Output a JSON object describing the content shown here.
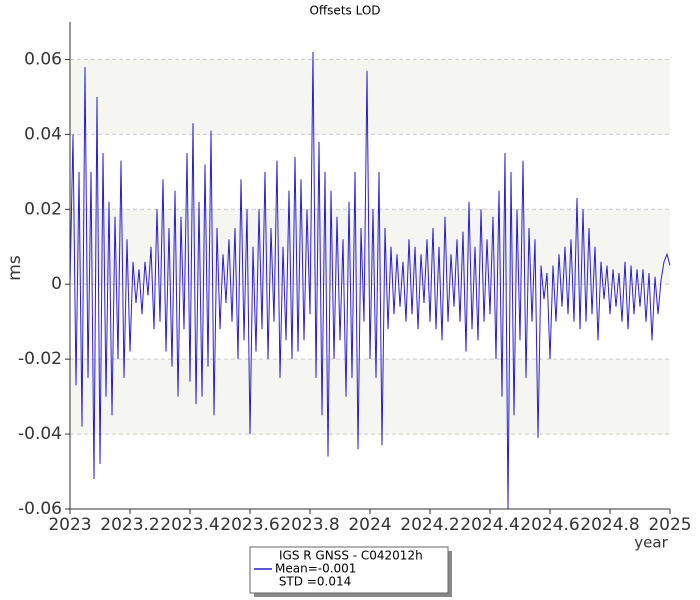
{
  "chart_data": {
    "type": "line",
    "title": "Offsets LOD",
    "xlabel": "year",
    "ylabel": "ms",
    "xlim": [
      2023,
      2025
    ],
    "xticks": [
      2023,
      2023.2,
      2023.4,
      2023.6,
      2023.8,
      2024,
      2024.2,
      2024.4,
      2024.6,
      2024.8,
      2025
    ],
    "ylim": [
      -0.06,
      0.07
    ],
    "yticks": [
      -0.06,
      -0.04,
      -0.02,
      0,
      0.02,
      0.04,
      0.06
    ],
    "grid": true,
    "annotations": [
      "Mean=-0.001",
      " STD =0.014"
    ],
    "x": [
      2023,
      2023.01,
      2023.02,
      2023.03,
      2023.04,
      2023.05,
      2023.06,
      2023.07,
      2023.08,
      2023.09,
      2023.1,
      2023.11,
      2023.12,
      2023.13,
      2023.14,
      2023.15,
      2023.16,
      2023.17,
      2023.18,
      2023.19,
      2023.2,
      2023.21,
      2023.22,
      2023.23,
      2023.24,
      2023.25,
      2023.26,
      2023.27,
      2023.28,
      2023.29,
      2023.3,
      2023.31,
      2023.32,
      2023.33,
      2023.34,
      2023.35,
      2023.36,
      2023.37,
      2023.38,
      2023.39,
      2023.4,
      2023.41,
      2023.42,
      2023.43,
      2023.44,
      2023.45,
      2023.46,
      2023.47,
      2023.48,
      2023.49,
      2023.5,
      2023.51,
      2023.52,
      2023.53,
      2023.54,
      2023.55,
      2023.56,
      2023.57,
      2023.58,
      2023.59,
      2023.6,
      2023.61,
      2023.62,
      2023.63,
      2023.64,
      2023.65,
      2023.66,
      2023.67,
      2023.68,
      2023.69,
      2023.7,
      2023.71,
      2023.72,
      2023.73,
      2023.74,
      2023.75,
      2023.76,
      2023.77,
      2023.78,
      2023.79,
      2023.8,
      2023.81,
      2023.82,
      2023.83,
      2023.84,
      2023.85,
      2023.86,
      2023.87,
      2023.88,
      2023.89,
      2023.9,
      2023.91,
      2023.92,
      2023.93,
      2023.94,
      2023.95,
      2023.96,
      2023.97,
      2023.98,
      2023.99,
      2024,
      2024.01,
      2024.02,
      2024.03,
      2024.04,
      2024.05,
      2024.06,
      2024.07,
      2024.08,
      2024.09,
      2024.1,
      2024.11,
      2024.12,
      2024.13,
      2024.14,
      2024.15,
      2024.16,
      2024.17,
      2024.18,
      2024.19,
      2024.2,
      2024.21,
      2024.22,
      2024.23,
      2024.24,
      2024.25,
      2024.26,
      2024.27,
      2024.28,
      2024.29,
      2024.3,
      2024.31,
      2024.32,
      2024.33,
      2024.34,
      2024.35,
      2024.36,
      2024.37,
      2024.38,
      2024.39,
      2024.4,
      2024.41,
      2024.42,
      2024.43,
      2024.44,
      2024.45,
      2024.46,
      2024.47,
      2024.48,
      2024.49,
      2024.5,
      2024.51,
      2024.52,
      2024.53,
      2024.54,
      2024.55,
      2024.56,
      2024.57,
      2024.58,
      2024.59,
      2024.6,
      2024.61,
      2024.62,
      2024.63,
      2024.64,
      2024.65,
      2024.66,
      2024.67,
      2024.68,
      2024.69,
      2024.7,
      2024.71,
      2024.72,
      2024.73,
      2024.74,
      2024.75,
      2024.76,
      2024.77,
      2024.78,
      2024.79,
      2024.8,
      2024.81,
      2024.82,
      2024.83,
      2024.84,
      2024.85,
      2024.86,
      2024.87,
      2024.88,
      2024.89,
      2024.9,
      2024.91,
      2024.92,
      2024.93,
      2024.94,
      2024.95,
      2024.96,
      2024.97,
      2024.98,
      2024.99,
      2025
    ],
    "series": [
      {
        "name": "IGS R GNSS - C042012h",
        "color": "#2a1fd0",
        "values": [
          0,
          0.04,
          -0.027,
          0.03,
          -0.038,
          0.058,
          -0.025,
          0.03,
          -0.052,
          0.05,
          -0.048,
          0.035,
          -0.03,
          0.022,
          -0.035,
          0.018,
          -0.02,
          0.033,
          -0.025,
          0.012,
          -0.018,
          0.006,
          -0.005,
          0.004,
          -0.008,
          0.006,
          -0.003,
          0.01,
          -0.012,
          0.02,
          -0.01,
          0.028,
          -0.018,
          0.015,
          -0.022,
          0.025,
          -0.03,
          0.018,
          -0.012,
          0.035,
          -0.026,
          0.043,
          -0.032,
          0.022,
          -0.03,
          0.032,
          -0.022,
          0.041,
          -0.035,
          0.015,
          -0.012,
          0.008,
          -0.005,
          0.012,
          -0.01,
          0.015,
          -0.02,
          0.028,
          -0.015,
          0.02,
          -0.04,
          0.01,
          -0.018,
          0.02,
          -0.012,
          0.03,
          -0.02,
          0.015,
          -0.01,
          0.033,
          -0.025,
          0.01,
          -0.015,
          0.025,
          -0.02,
          0.034,
          -0.018,
          0.028,
          -0.015,
          0.02,
          -0.008,
          0.062,
          -0.025,
          0.038,
          -0.035,
          0.03,
          -0.046,
          0.025,
          -0.02,
          0.018,
          -0.015,
          0.012,
          -0.03,
          0.022,
          -0.025,
          0.03,
          -0.044,
          0.015,
          -0.01,
          0.057,
          -0.02,
          0.02,
          -0.025,
          0.03,
          -0.043,
          0.015,
          -0.012,
          0.01,
          -0.008,
          0.008,
          -0.006,
          0.006,
          -0.01,
          0.012,
          -0.008,
          0.01,
          -0.012,
          0.008,
          -0.005,
          0.012,
          -0.01,
          0.015,
          -0.012,
          0.01,
          -0.015,
          0.018,
          -0.01,
          0.008,
          -0.006,
          0.012,
          -0.01,
          0.014,
          -0.018,
          0.022,
          -0.012,
          0.01,
          -0.015,
          0.02,
          -0.01,
          0.012,
          -0.008,
          0.018,
          -0.02,
          0.025,
          -0.03,
          0.035,
          -0.06,
          0.03,
          -0.035,
          0.02,
          -0.015,
          0.033,
          -0.025,
          0.015,
          -0.01,
          0.012,
          -0.041,
          0.005,
          -0.004,
          0.003,
          -0.02,
          0.005,
          -0.01,
          0.008,
          -0.006,
          0.01,
          -0.008,
          0.012,
          -0.01,
          0.023,
          -0.012,
          0.02,
          -0.01,
          0.015,
          -0.008,
          0.01,
          -0.015,
          0.006,
          -0.004,
          0.005,
          -0.008,
          0.004,
          -0.006,
          0.003,
          -0.01,
          0.006,
          -0.012,
          0.005,
          -0.008,
          0.004,
          -0.006,
          0.004,
          -0.01,
          0.003,
          -0.015,
          0.002,
          -0.008,
          0.001,
          0.006,
          0.008,
          0.005
        ]
      }
    ]
  }
}
